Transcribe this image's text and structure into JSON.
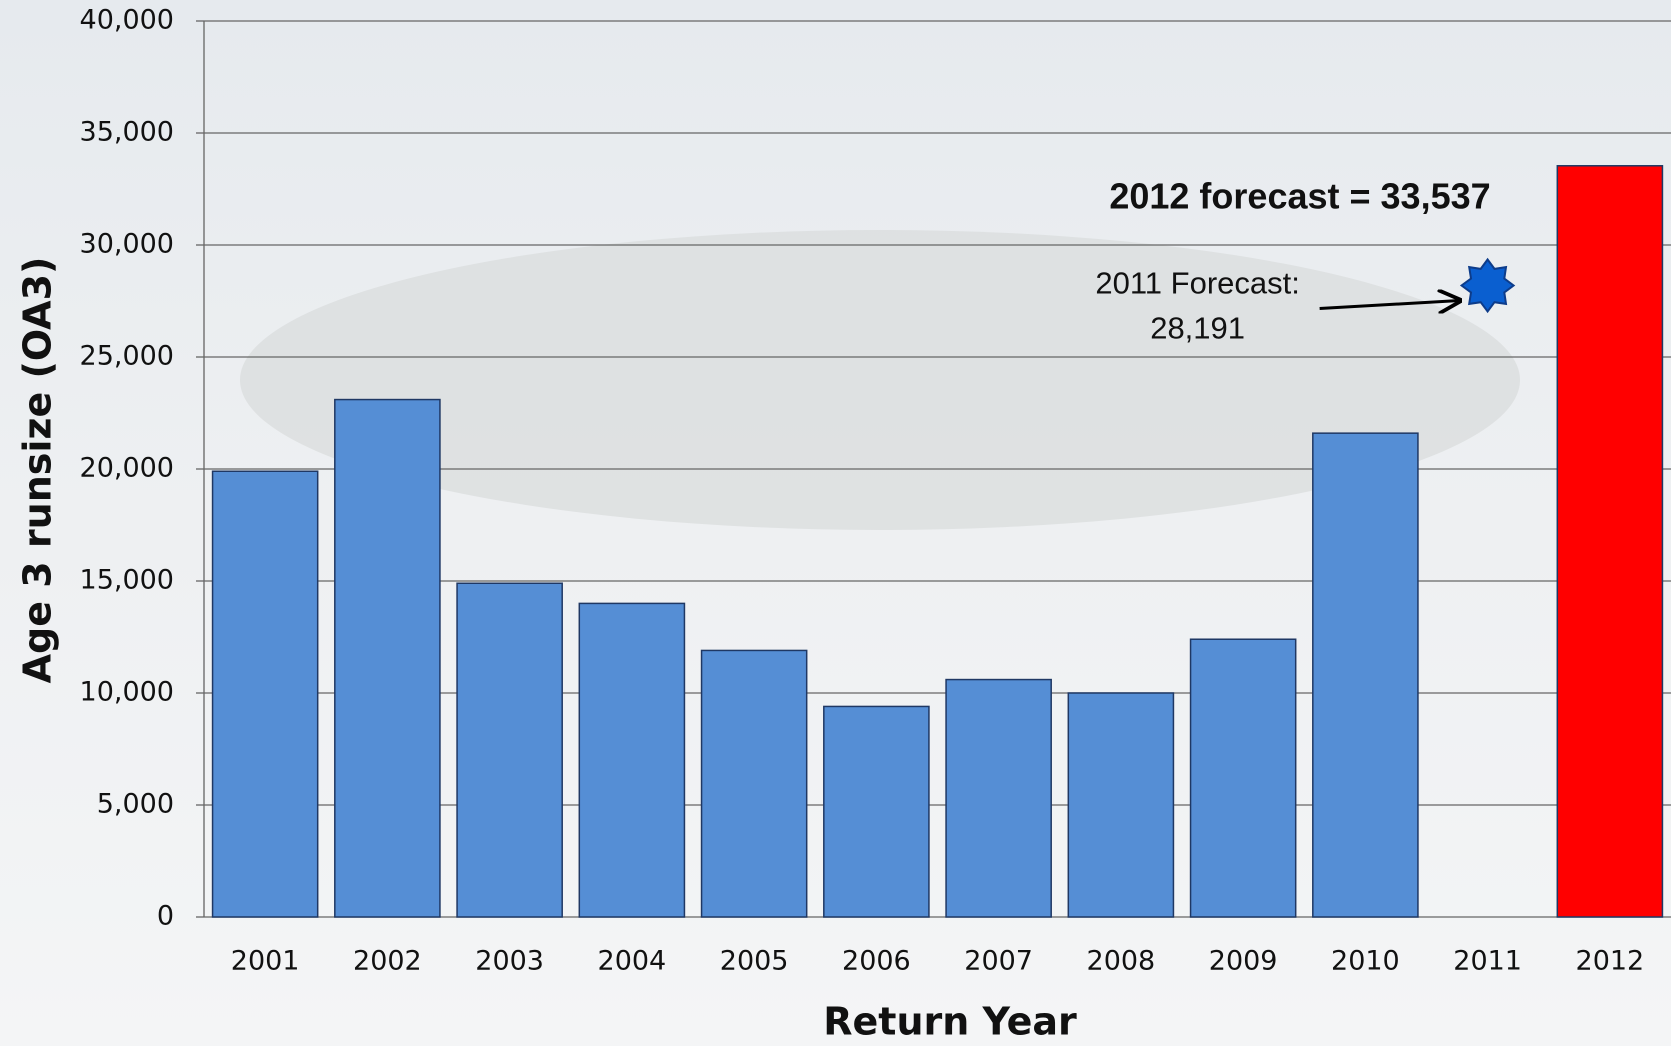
{
  "chart_data": {
    "type": "bar",
    "x_label": "Return Year",
    "y_label": "Age 3 runsize (OA3)",
    "categories": [
      "2001",
      "2002",
      "2003",
      "2004",
      "2005",
      "2006",
      "2007",
      "2008",
      "2009",
      "2010",
      "2011",
      "2012"
    ],
    "values": [
      19900,
      23100,
      14900,
      14000,
      11900,
      9400,
      10600,
      10000,
      12400,
      21600,
      null,
      33537
    ],
    "colors": [
      "#558ed5",
      "#558ed5",
      "#558ed5",
      "#558ed5",
      "#558ed5",
      "#558ed5",
      "#558ed5",
      "#558ed5",
      "#558ed5",
      "#558ed5",
      "#558ed5",
      "#ff0000"
    ],
    "ylim": [
      0,
      40000
    ],
    "yticks": [
      0,
      {
        "value": 5000,
        "label": "5,000"
      },
      {
        "value": 10000,
        "label": "10,000"
      },
      {
        "value": 15000,
        "label": "15,000"
      },
      {
        "value": 20000,
        "label": "20,000"
      },
      {
        "value": 25000,
        "label": "25,000"
      },
      {
        "value": 30000,
        "label": "30,000"
      },
      {
        "value": 35000,
        "label": "35,000"
      },
      {
        "value": 40000,
        "label": "40,000"
      }
    ],
    "grid": true,
    "annotations": [
      "2012 forecast = 33,537"
    ],
    "forecast_points": [
      {
        "x": "2011",
        "value": 28191,
        "label": "2011 Forecast:",
        "value_label": "28,191",
        "color": "#0a5fd0"
      }
    ]
  }
}
